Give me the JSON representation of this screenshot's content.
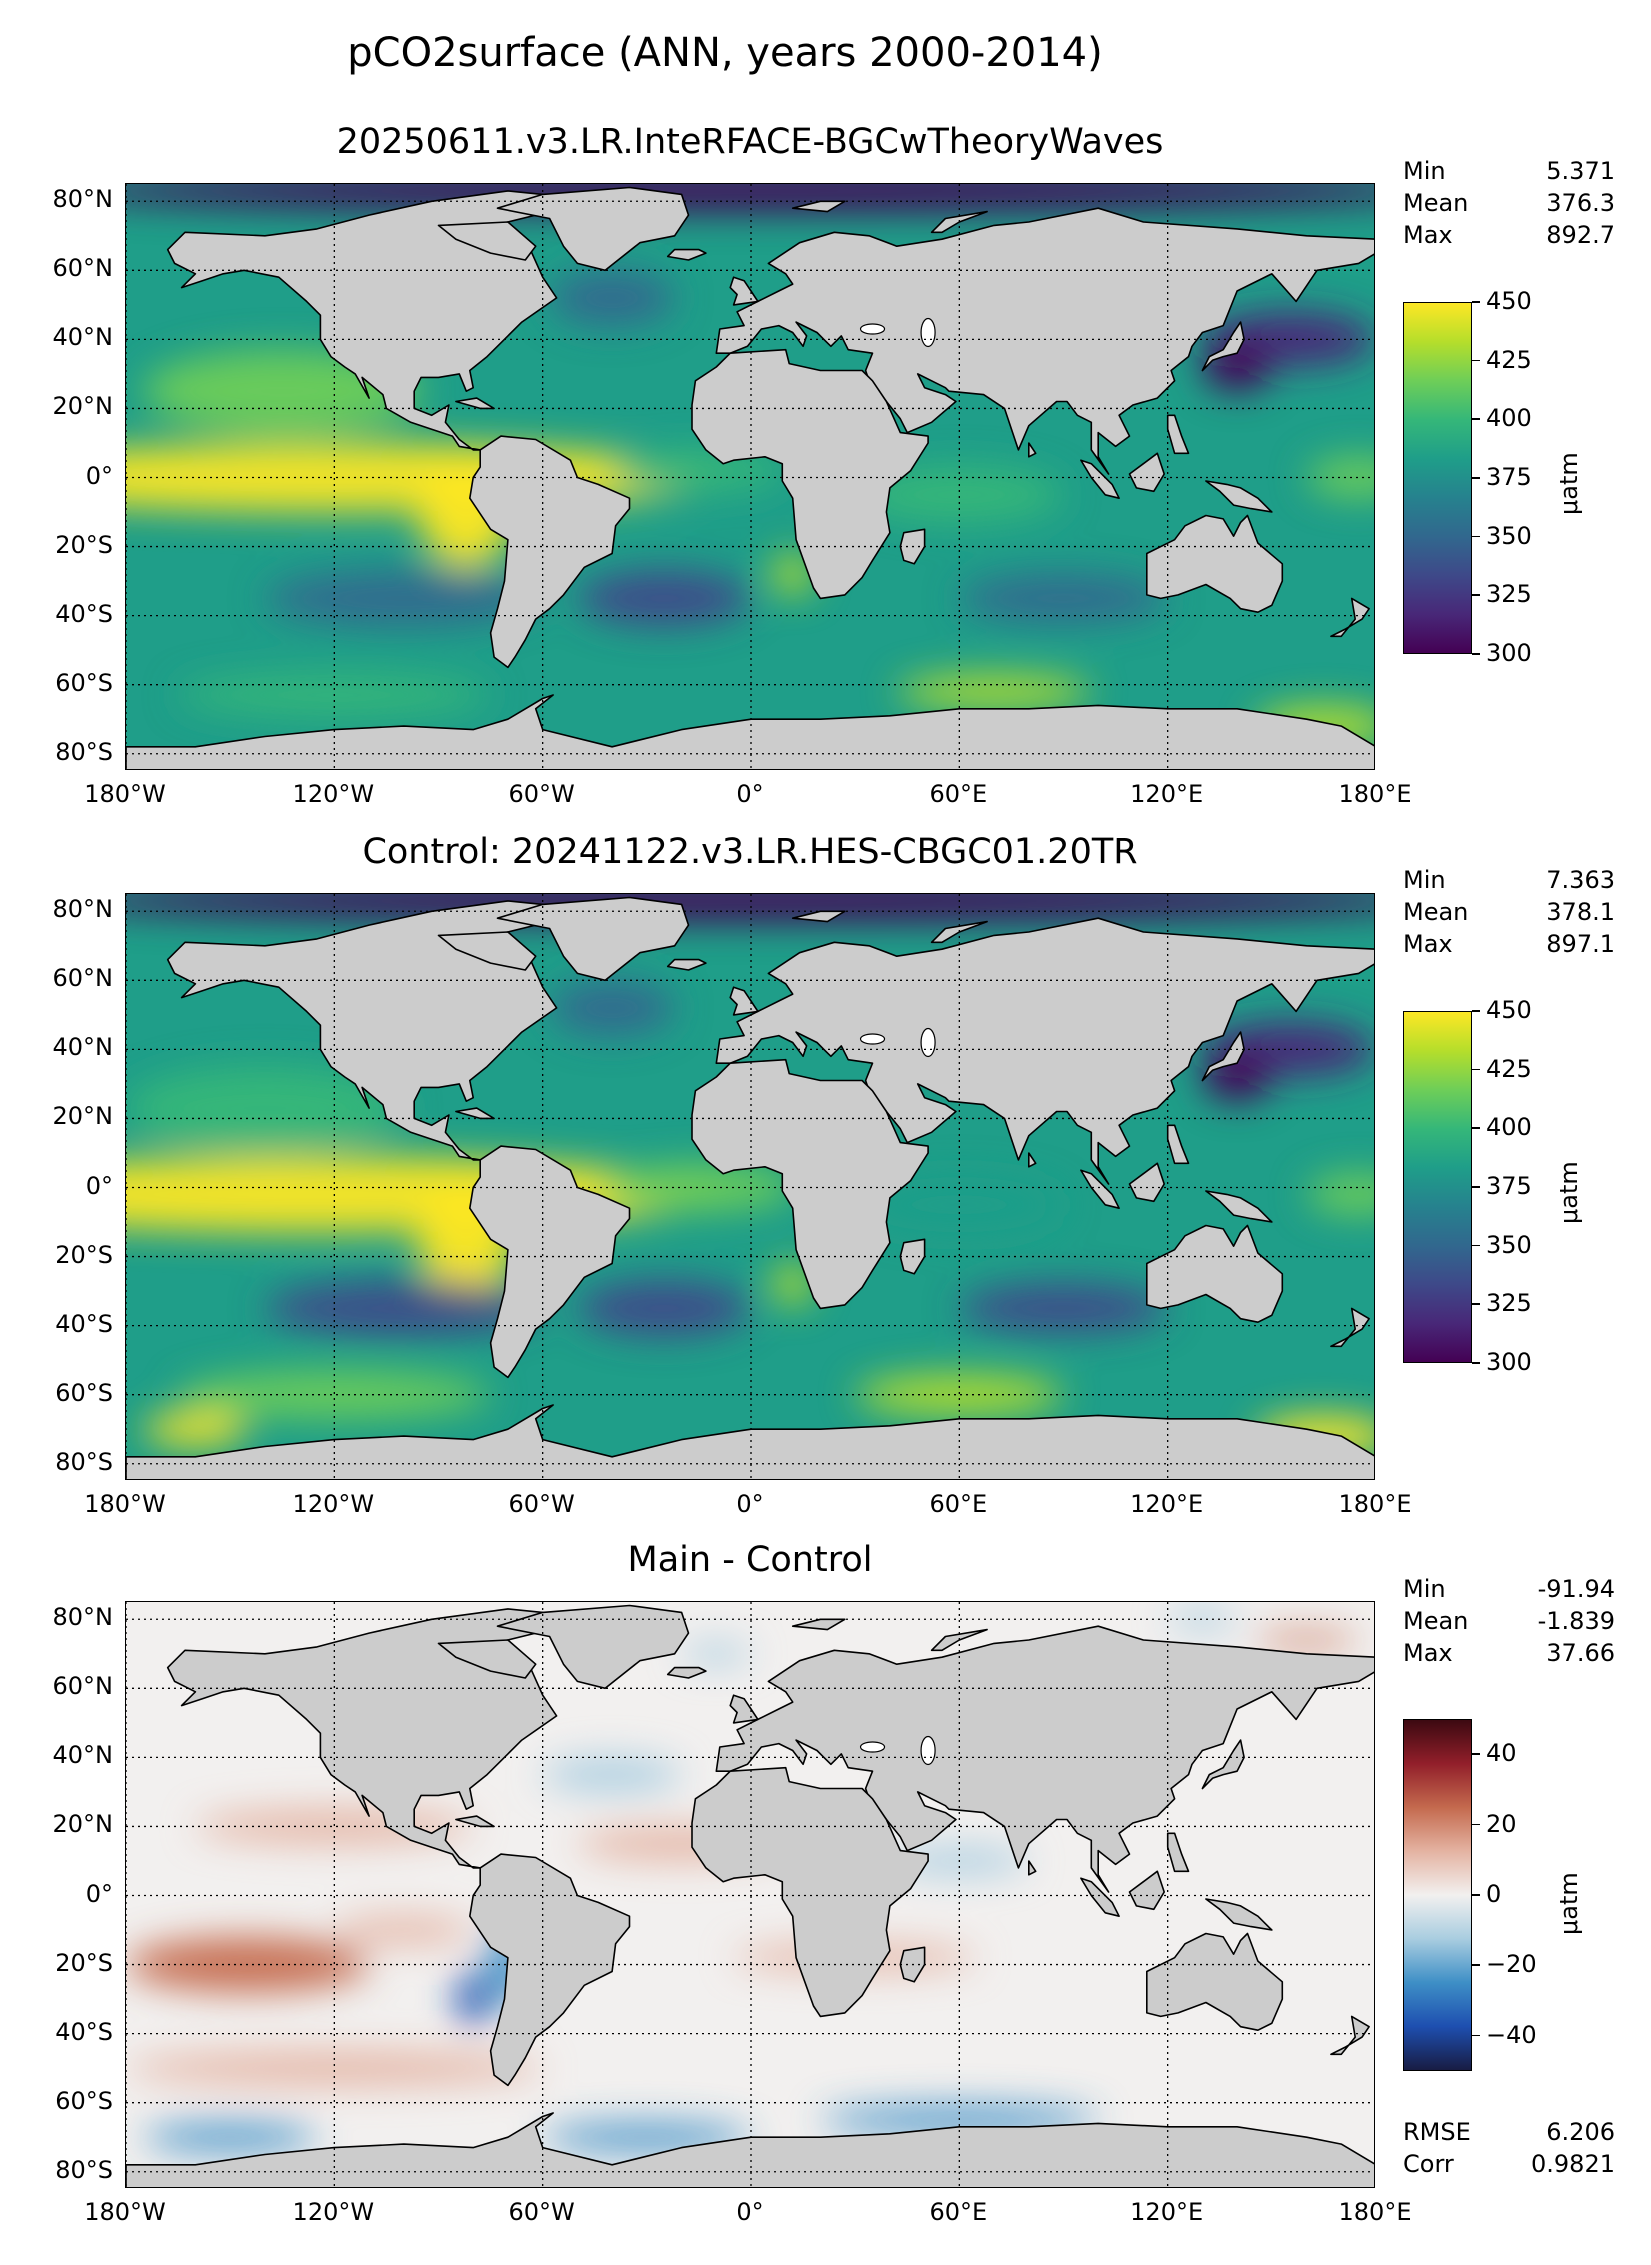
{
  "figure": {
    "suptitle": "pCO2surface (ANN, years 2000-2014)"
  },
  "colors": {
    "land": "#cccccc",
    "coast": "#000000",
    "viridis": [
      "#440154",
      "#482878",
      "#3e4989",
      "#31688e",
      "#26828e",
      "#1f9e89",
      "#35b779",
      "#6ece58",
      "#b5de2b",
      "#fde725"
    ],
    "balance": [
      "#181c43",
      "#1e4fb0",
      "#3e8fc6",
      "#a9cde0",
      "#f2f0ef",
      "#e4b3a2",
      "#c46a4e",
      "#921f2a",
      "#3c0911"
    ]
  },
  "panels": [
    {
      "title": "20250611.v3.LR.InteRFACE-BGCwTheoryWaves",
      "stats": [
        {
          "label": "Min",
          "value": "5.371"
        },
        {
          "label": "Mean",
          "value": "376.3"
        },
        {
          "label": "Max",
          "value": "892.7"
        }
      ],
      "colorbar": {
        "label": "μatm",
        "ticks": [
          "300",
          "325",
          "350",
          "375",
          "400",
          "425",
          "450"
        ],
        "range": [
          300,
          450
        ],
        "cmap": "viridis"
      }
    },
    {
      "title": "Control: 20241122.v3.LR.HES-CBGC01.20TR",
      "stats": [
        {
          "label": "Min",
          "value": "7.363"
        },
        {
          "label": "Mean",
          "value": "378.1"
        },
        {
          "label": "Max",
          "value": "897.1"
        }
      ],
      "colorbar": {
        "label": "μatm",
        "ticks": [
          "300",
          "325",
          "350",
          "375",
          "400",
          "425",
          "450"
        ],
        "range": [
          300,
          450
        ],
        "cmap": "viridis"
      }
    },
    {
      "title": "Main - Control",
      "stats": [
        {
          "label": "Min",
          "value": "-91.94"
        },
        {
          "label": "Mean",
          "value": "-1.839"
        },
        {
          "label": "Max",
          "value": "37.66"
        }
      ],
      "stats2": [
        {
          "label": "RMSE",
          "value": "6.206"
        },
        {
          "label": "Corr",
          "value": "0.9821"
        }
      ],
      "colorbar": {
        "label": "μatm",
        "ticks": [
          "−40",
          "−20",
          "0",
          "20",
          "40"
        ],
        "range": [
          -50,
          50
        ],
        "cmap": "balance"
      }
    }
  ],
  "axes": {
    "lon_ticks": [
      "180°W",
      "120°W",
      "60°W",
      "0°",
      "60°E",
      "120°E",
      "180°E"
    ],
    "lat_ticks": [
      "80°N",
      "60°N",
      "40°N",
      "20°N",
      "0°",
      "20°S",
      "40°S",
      "60°S",
      "80°S"
    ]
  },
  "chart_data": [
    {
      "type": "heatmap",
      "title": "20250611.v3.LR.InteRFACE-BGCwTheoryWaves",
      "variable": "pCO2surface",
      "xlim": [
        -180,
        180
      ],
      "ylim": [
        -90,
        90
      ],
      "clim": [
        300,
        450
      ],
      "colorbar_label": "μatm",
      "summary": {
        "min": 5.371,
        "mean": 376.3,
        "max": 892.7
      },
      "grid": true
    },
    {
      "type": "heatmap",
      "title": "Control: 20241122.v3.LR.HES-CBGC01.20TR",
      "variable": "pCO2surface",
      "xlim": [
        -180,
        180
      ],
      "ylim": [
        -90,
        90
      ],
      "clim": [
        300,
        450
      ],
      "colorbar_label": "μatm",
      "summary": {
        "min": 7.363,
        "mean": 378.1,
        "max": 897.1
      },
      "grid": true
    },
    {
      "type": "heatmap",
      "title": "Main - Control",
      "variable": "pCO2surface",
      "xlim": [
        -180,
        180
      ],
      "ylim": [
        -90,
        90
      ],
      "clim": [
        -50,
        50
      ],
      "colorbar_label": "μatm",
      "summary": {
        "min": -91.94,
        "mean": -1.839,
        "max": 37.66,
        "rmse": 6.206,
        "corr": 0.9821
      },
      "grid": true
    }
  ]
}
